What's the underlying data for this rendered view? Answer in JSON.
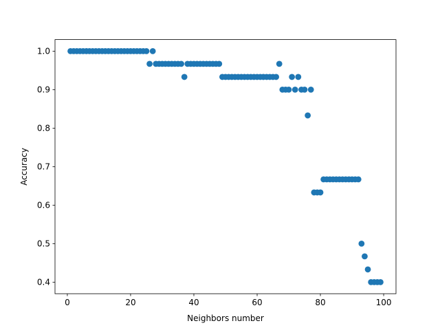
{
  "chart_data": {
    "type": "scatter",
    "title": "",
    "xlabel": "Neighbors number",
    "ylabel": "Accuracy",
    "xlim": [
      -3.9,
      103.9
    ],
    "ylim": [
      0.37,
      1.03
    ],
    "xticks": [
      0,
      20,
      40,
      60,
      80,
      100
    ],
    "yticks": [
      0.4,
      0.5,
      0.6,
      0.7,
      0.8,
      0.9,
      1.0
    ],
    "xtick_labels": [
      "0",
      "20",
      "40",
      "60",
      "80",
      "100"
    ],
    "ytick_labels": [
      "0.4",
      "0.5",
      "0.6",
      "0.7",
      "0.8",
      "0.9",
      "1.0"
    ],
    "grid": false,
    "marker_color": "#1f77b4",
    "series": [
      {
        "x": [
          1,
          2,
          3,
          4,
          5,
          6,
          7,
          8,
          9,
          10,
          11,
          12,
          13,
          14,
          15,
          16,
          17,
          18,
          19,
          20,
          21,
          22,
          23,
          24,
          25,
          26,
          27,
          28,
          29,
          30,
          31,
          32,
          33,
          34,
          35,
          36,
          37,
          38,
          39,
          40,
          41,
          42,
          43,
          44,
          45,
          46,
          47,
          48,
          49,
          50,
          51,
          52,
          53,
          54,
          55,
          56,
          57,
          58,
          59,
          60,
          61,
          62,
          63,
          64,
          65,
          66,
          67,
          68,
          69,
          70,
          71,
          72,
          73,
          74,
          75,
          76,
          77,
          78,
          79,
          80,
          81,
          82,
          83,
          84,
          85,
          86,
          87,
          88,
          89,
          90,
          91,
          92,
          93,
          94,
          95,
          96,
          97,
          98,
          99
        ],
        "y": [
          1.0,
          1.0,
          1.0,
          1.0,
          1.0,
          1.0,
          1.0,
          1.0,
          1.0,
          1.0,
          1.0,
          1.0,
          1.0,
          1.0,
          1.0,
          1.0,
          1.0,
          1.0,
          1.0,
          1.0,
          1.0,
          1.0,
          1.0,
          1.0,
          1.0,
          0.967,
          1.0,
          0.967,
          0.967,
          0.967,
          0.967,
          0.967,
          0.967,
          0.967,
          0.967,
          0.967,
          0.933,
          0.967,
          0.967,
          0.967,
          0.967,
          0.967,
          0.967,
          0.967,
          0.967,
          0.967,
          0.967,
          0.967,
          0.933,
          0.933,
          0.933,
          0.933,
          0.933,
          0.933,
          0.933,
          0.933,
          0.933,
          0.933,
          0.933,
          0.933,
          0.933,
          0.933,
          0.933,
          0.933,
          0.933,
          0.933,
          0.967,
          0.9,
          0.9,
          0.9,
          0.933,
          0.9,
          0.933,
          0.9,
          0.9,
          0.833,
          0.9,
          0.633,
          0.633,
          0.633,
          0.667,
          0.667,
          0.667,
          0.667,
          0.667,
          0.667,
          0.667,
          0.667,
          0.667,
          0.667,
          0.667,
          0.667,
          0.5,
          0.467,
          0.433,
          0.4,
          0.4,
          0.4,
          0.4
        ]
      }
    ]
  }
}
